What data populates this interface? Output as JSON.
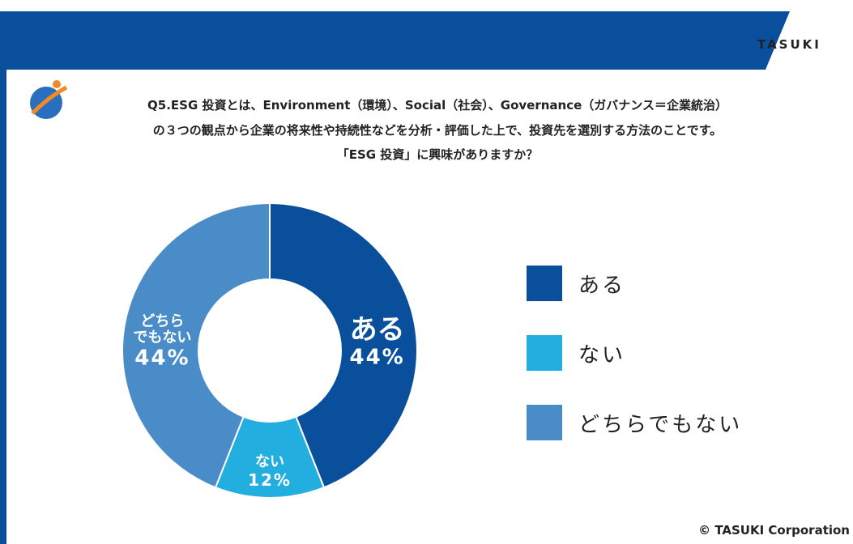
{
  "logo": "TASUKI",
  "footer": "© TASUKI Corporation",
  "chart_data": {
    "type": "pie",
    "donut": true,
    "title": [
      "Q5.ESG 投資とは、Environment（環境）、Social（社会）、Governance（ガバナンス＝企業統治）",
      "の３つの観点から企業の将来性や持続性などを分析・評価した上で、投資先を選別する方法のことです。",
      "「ESG 投資」に興味がありますか？"
    ],
    "categories": [
      "ある",
      "ない",
      "どちらでもない"
    ],
    "slice_labels": [
      "ある",
      "ない",
      "どちら\nでもない"
    ],
    "values": [
      44,
      12,
      44
    ],
    "value_labels": [
      "44%",
      "12%",
      "44%"
    ],
    "colors": [
      "#0a4f9b",
      "#23aee0",
      "#4a8cc8"
    ],
    "legend": "right"
  }
}
